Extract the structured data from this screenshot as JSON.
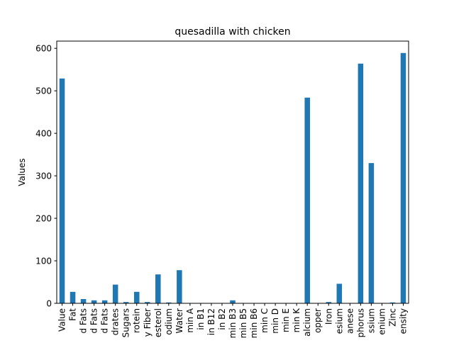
{
  "chart_data": {
    "type": "bar",
    "title": "quesadilla with chicken",
    "xlabel": "",
    "ylabel": "Values",
    "ylim": [
      0,
      617
    ],
    "yticks": [
      0,
      100,
      200,
      300,
      400,
      500,
      600
    ],
    "grid": false,
    "legend": "none",
    "bar_color": "#1f77b4",
    "categories": [
      "Value",
      "Fat",
      "d Fats",
      "d Fats",
      "d Fats",
      "drates",
      "Sugars",
      "rotein",
      "y Fiber",
      "esterol",
      "odium",
      "Water",
      "min A",
      "in B1",
      "in B12",
      "in B2",
      "min B3",
      "min B5",
      "min B6",
      "min C",
      "min D",
      "min E",
      "min K",
      "alcium",
      "opper",
      "Iron",
      "esium",
      "anese",
      "phorus",
      "ssium",
      "enium",
      "Zinc",
      "ensity"
    ],
    "values": [
      529,
      27,
      10,
      7,
      7,
      44,
      3,
      27,
      3,
      68,
      2,
      78,
      0,
      0,
      0,
      0,
      7,
      0,
      0,
      0,
      0,
      0,
      0,
      484,
      0,
      3,
      46,
      0,
      564,
      330,
      0,
      2,
      589
    ]
  }
}
